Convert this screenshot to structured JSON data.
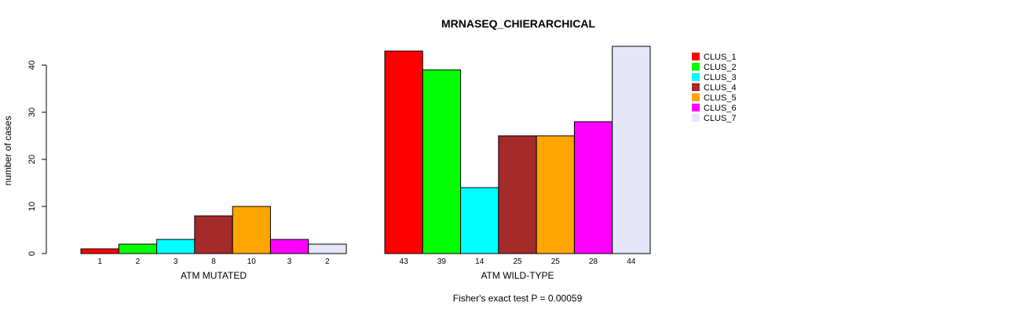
{
  "chart_data": {
    "type": "bar",
    "title": "MRNASEQ_CHIERARCHICAL",
    "ylabel": "number of cases",
    "ylim": [
      0,
      40
    ],
    "yticks": [
      "0",
      "10",
      "20",
      "30",
      "40"
    ],
    "footnote": "Fisher's exact test P = 0.00059",
    "legend_position": "top-right",
    "legend": [
      "CLUS_1",
      "CLUS_2",
      "CLUS_3",
      "CLUS_4",
      "CLUS_5",
      "CLUS_6",
      "CLUS_7"
    ],
    "colors": [
      "#FF0000",
      "#00FF00",
      "#00FFFF",
      "#A52A2A",
      "#FFA500",
      "#FF00FF",
      "#E6E6FA"
    ],
    "groups": [
      {
        "name": "ATM MUTATED",
        "values": [
          1,
          2,
          3,
          8,
          10,
          3,
          2
        ]
      },
      {
        "name": "ATM WILD-TYPE",
        "values": [
          43,
          39,
          14,
          25,
          25,
          28,
          44
        ]
      }
    ]
  }
}
